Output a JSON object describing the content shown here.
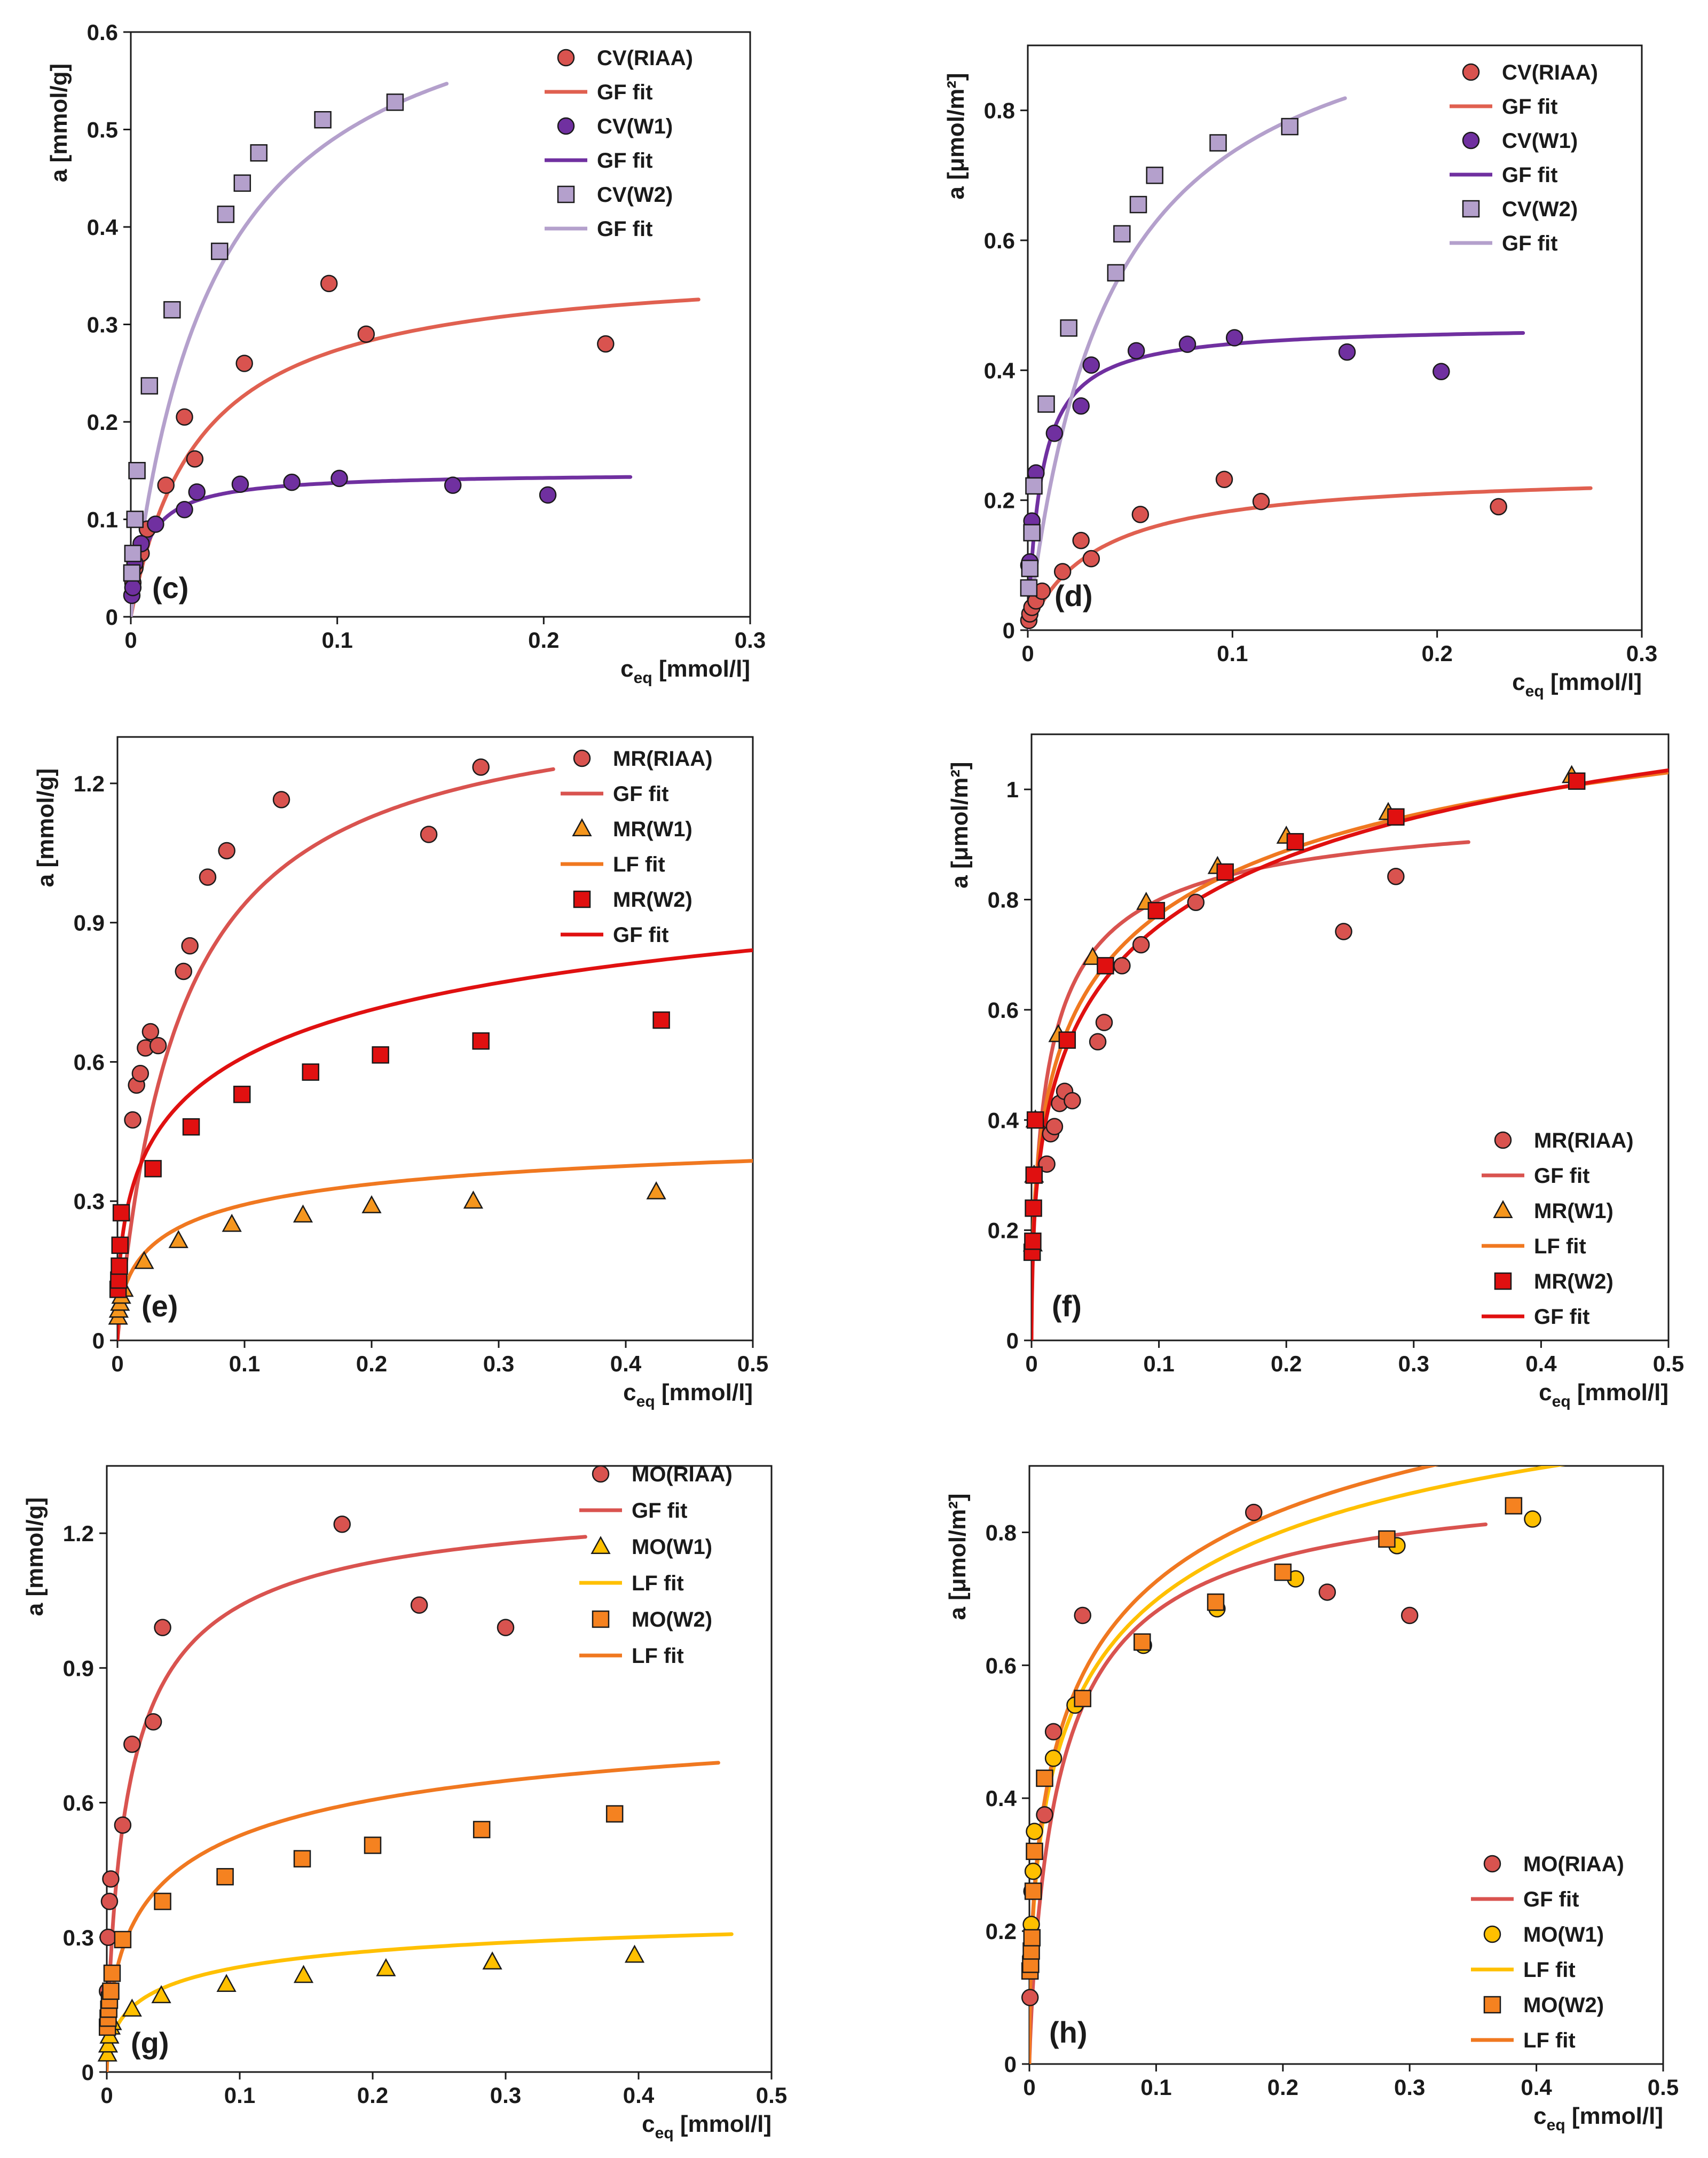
{
  "figure": {
    "description_labels": [
      "(c)",
      "(d)",
      "(e)",
      "(f)",
      "(g)",
      "(h)"
    ]
  },
  "chart_data": [
    {
      "id": "c",
      "type": "scatter",
      "panel_label": "(c)",
      "xlabel": "c",
      "xlabel_sub": "eq",
      "xlabel_unit": " [mmol/l]",
      "ylabel": "a [mmol/g]",
      "xlim": [
        0,
        0.3
      ],
      "ylim": [
        0,
        0.6
      ],
      "xticks": [
        0,
        0.1,
        0.2,
        0.3
      ],
      "xtick_labels": [
        "0",
        "0.1",
        "0.2",
        "0.3"
      ],
      "yticks": [
        0,
        0.1,
        0.2,
        0.3,
        0.4,
        0.5,
        0.6
      ],
      "ytick_labels": [
        "0",
        "0.1",
        "0.2",
        "0.3",
        "0.4",
        "0.5",
        "0.6"
      ],
      "legend_position": "top-right",
      "series": [
        {
          "name": "CV(RIAA)",
          "marker": "circle",
          "color": "#d9534f",
          "x": [
            0.001,
            0.002,
            0.005,
            0.008,
            0.017,
            0.026,
            0.031,
            0.055,
            0.096,
            0.114,
            0.23
          ],
          "y": [
            0.035,
            0.05,
            0.065,
            0.09,
            0.135,
            0.205,
            0.162,
            0.26,
            0.342,
            0.29,
            0.28
          ]
        },
        {
          "name": "GF fit",
          "line": true,
          "color": "#e06050",
          "curve": {
            "qm": 0.365,
            "K": 30
          },
          "xmax": 0.275
        },
        {
          "name": "CV(W1)",
          "marker": "circle",
          "color": "#7030a0",
          "x": [
            0.0005,
            0.001,
            0.002,
            0.005,
            0.012,
            0.026,
            0.032,
            0.053,
            0.078,
            0.101,
            0.156,
            0.202
          ],
          "y": [
            0.022,
            0.03,
            0.055,
            0.075,
            0.095,
            0.11,
            0.128,
            0.136,
            0.138,
            0.142,
            0.135,
            0.125
          ]
        },
        {
          "name": "GF fit",
          "line": true,
          "color": "#7030a0",
          "curve": {
            "qm": 0.148,
            "K": 130
          },
          "xmax": 0.242
        },
        {
          "name": "CV(W2)",
          "marker": "square",
          "color": "#b4a0cc",
          "x": [
            0.0005,
            0.001,
            0.002,
            0.003,
            0.009,
            0.02,
            0.043,
            0.046,
            0.054,
            0.062,
            0.093,
            0.128
          ],
          "y": [
            0.045,
            0.065,
            0.1,
            0.15,
            0.237,
            0.315,
            0.375,
            0.413,
            0.445,
            0.476,
            0.51,
            0.528
          ]
        },
        {
          "name": "GF fit",
          "line": true,
          "color": "#b4a0cc",
          "curve": {
            "qm": 0.69,
            "K": 25
          },
          "xmax": 0.153
        }
      ]
    },
    {
      "id": "d",
      "type": "scatter",
      "panel_label": "(d)",
      "xlabel": "c",
      "xlabel_sub": "eq",
      "xlabel_unit": " [mmol/l]",
      "ylabel": "a [μmol/m²]",
      "xlim": [
        0,
        0.3
      ],
      "ylim": [
        0,
        0.9
      ],
      "xticks": [
        0,
        0.1,
        0.2,
        0.3
      ],
      "xtick_labels": [
        "0",
        "0.1",
        "0.2",
        "0.3"
      ],
      "yticks": [
        0,
        0.2,
        0.4,
        0.6,
        0.8
      ],
      "ytick_labels": [
        "0",
        "0.2",
        "0.4",
        "0.6",
        "0.8"
      ],
      "legend_position": "top-right",
      "series": [
        {
          "name": "CV(RIAA)",
          "marker": "circle",
          "color": "#d9534f",
          "x": [
            0.0005,
            0.001,
            0.002,
            0.004,
            0.007,
            0.017,
            0.026,
            0.031,
            0.055,
            0.096,
            0.114,
            0.23
          ],
          "y": [
            0.015,
            0.025,
            0.035,
            0.045,
            0.06,
            0.09,
            0.138,
            0.11,
            0.178,
            0.232,
            0.198,
            0.19
          ]
        },
        {
          "name": "GF fit",
          "line": true,
          "color": "#e06050",
          "curve": {
            "qm": 0.245,
            "K": 30
          },
          "xmax": 0.275
        },
        {
          "name": "CV(W1)",
          "marker": "circle",
          "color": "#7030a0",
          "x": [
            0.0005,
            0.001,
            0.002,
            0.004,
            0.013,
            0.026,
            0.031,
            0.053,
            0.078,
            0.101,
            0.156,
            0.202
          ],
          "y": [
            0.1,
            0.105,
            0.168,
            0.242,
            0.303,
            0.345,
            0.408,
            0.43,
            0.44,
            0.45,
            0.428,
            0.398
          ]
        },
        {
          "name": "GF fit",
          "line": true,
          "color": "#7030a0",
          "curve": {
            "qm": 0.47,
            "K": 150
          },
          "xmax": 0.242
        },
        {
          "name": "CV(W2)",
          "marker": "square",
          "color": "#b4a0cc",
          "x": [
            0.0005,
            0.001,
            0.002,
            0.003,
            0.009,
            0.02,
            0.043,
            0.046,
            0.054,
            0.062,
            0.093,
            0.128
          ],
          "y": [
            0.065,
            0.095,
            0.15,
            0.222,
            0.348,
            0.465,
            0.55,
            0.61,
            0.655,
            0.7,
            0.75,
            0.775
          ]
        },
        {
          "name": "GF fit",
          "line": true,
          "color": "#b4a0cc",
          "curve": {
            "qm": 1.03,
            "K": 25
          },
          "xmax": 0.155
        }
      ]
    },
    {
      "id": "e",
      "type": "scatter",
      "panel_label": "(e)",
      "xlabel": "c",
      "xlabel_sub": "eq",
      "xlabel_unit": " [mmol/l]",
      "ylabel": "a [mmol/g]",
      "xlim": [
        0,
        0.5
      ],
      "ylim": [
        0,
        1.3
      ],
      "xticks": [
        0,
        0.1,
        0.2,
        0.3,
        0.4,
        0.5
      ],
      "xtick_labels": [
        "0",
        "0.1",
        "0.2",
        "0.3",
        "0.4",
        "0.5"
      ],
      "yticks": [
        0,
        0.3,
        0.6,
        0.9,
        1.2
      ],
      "ytick_labels": [
        "0",
        "0.3",
        "0.6",
        "0.9",
        "1.2"
      ],
      "legend_position": "top-right",
      "series": [
        {
          "name": "MR(RIAA)",
          "marker": "circle",
          "color": "#d9534f",
          "x": [
            0.012,
            0.015,
            0.018,
            0.022,
            0.026,
            0.032,
            0.052,
            0.057,
            0.071,
            0.086,
            0.129,
            0.245,
            0.286
          ],
          "y": [
            0.475,
            0.55,
            0.575,
            0.63,
            0.665,
            0.635,
            0.795,
            0.85,
            0.998,
            1.055,
            1.165,
            1.09,
            1.235
          ]
        },
        {
          "name": "GF fit",
          "line": true,
          "color": "#d9534f",
          "curve": {
            "qm": 1.41,
            "K": 20
          },
          "xmax": 0.343
        },
        {
          "name": "MR(W1)",
          "marker": "triangle",
          "color": "#f5961e",
          "x": [
            0.0005,
            0.001,
            0.002,
            0.003,
            0.005,
            0.021,
            0.048,
            0.09,
            0.146,
            0.2,
            0.28,
            0.424
          ],
          "y": [
            0.05,
            0.065,
            0.08,
            0.095,
            0.11,
            0.17,
            0.215,
            0.25,
            0.27,
            0.29,
            0.3,
            0.32
          ]
        },
        {
          "name": "LF fit",
          "line": true,
          "color": "#f07820",
          "curve": {
            "qm": 0.5,
            "K": 5,
            "n": 0.55
          },
          "xmax": 0.5
        },
        {
          "name": "MR(W2)",
          "marker": "square",
          "color": "#e01010",
          "x": [
            0.0005,
            0.001,
            0.0015,
            0.002,
            0.003,
            0.028,
            0.058,
            0.098,
            0.152,
            0.207,
            0.286,
            0.428
          ],
          "y": [
            0.11,
            0.13,
            0.16,
            0.205,
            0.275,
            0.37,
            0.46,
            0.53,
            0.578,
            0.615,
            0.645,
            0.69
          ]
        },
        {
          "name": "GF fit",
          "line": true,
          "color": "#e01010",
          "curve": {
            "qm": 1.3,
            "K": 2.5,
            "n": 0.45
          },
          "xmax": 0.5
        }
      ]
    },
    {
      "id": "f",
      "type": "scatter",
      "panel_label": "(f)",
      "xlabel": "c",
      "xlabel_sub": "eq",
      "xlabel_unit": " [mmol/l]",
      "ylabel": "a [μmol/m²]",
      "xlim": [
        0,
        0.5
      ],
      "ylim": [
        0,
        1.1
      ],
      "xticks": [
        0,
        0.1,
        0.2,
        0.3,
        0.4,
        0.5
      ],
      "xtick_labels": [
        "0",
        "0.1",
        "0.2",
        "0.3",
        "0.4",
        "0.5"
      ],
      "yticks": [
        0,
        0.2,
        0.4,
        0.6,
        0.8,
        1.0
      ],
      "ytick_labels": [
        "0",
        "0.2",
        "0.4",
        "0.6",
        "0.8",
        "1"
      ],
      "legend_position": "bottom-right",
      "series": [
        {
          "name": "MR(RIAA)",
          "marker": "circle",
          "color": "#d9534f",
          "x": [
            0.012,
            0.015,
            0.018,
            0.022,
            0.026,
            0.032,
            0.052,
            0.057,
            0.071,
            0.086,
            0.129,
            0.245,
            0.286
          ],
          "y": [
            0.32,
            0.375,
            0.388,
            0.43,
            0.452,
            0.435,
            0.542,
            0.577,
            0.68,
            0.718,
            0.795,
            0.742,
            0.842
          ]
        },
        {
          "name": "GF fit",
          "line": true,
          "color": "#d9534f",
          "curve": {
            "qm": 1.0,
            "K": 20,
            "n": 0.7
          },
          "xmax": 0.343
        },
        {
          "name": "MR(W1)",
          "marker": "triangle",
          "color": "#f5961e",
          "x": [
            0.001,
            0.002,
            0.003,
            0.021,
            0.048,
            0.09,
            0.146,
            0.2,
            0.28,
            0.424
          ],
          "y": [
            0.175,
            0.3,
            0.4,
            0.555,
            0.695,
            0.795,
            0.86,
            0.915,
            0.958,
            1.025
          ]
        },
        {
          "name": "LF fit",
          "line": true,
          "color": "#f07820",
          "curve": {
            "qm": 1.5,
            "K": 3,
            "n": 0.45
          },
          "xmax": 0.5
        },
        {
          "name": "MR(W2)",
          "marker": "square",
          "color": "#e01010",
          "x": [
            0.0005,
            0.001,
            0.0015,
            0.002,
            0.003,
            0.028,
            0.058,
            0.098,
            0.152,
            0.207,
            0.286,
            0.428
          ],
          "y": [
            0.16,
            0.18,
            0.24,
            0.3,
            0.4,
            0.545,
            0.68,
            0.78,
            0.85,
            0.905,
            0.95,
            1.015
          ]
        },
        {
          "name": "GF fit",
          "line": true,
          "color": "#e01010",
          "curve": {
            "qm": 1.6,
            "K": 2.5,
            "n": 0.45
          },
          "xmax": 0.5
        }
      ]
    },
    {
      "id": "g",
      "type": "scatter",
      "panel_label": "(g)",
      "xlabel": "c",
      "xlabel_sub": "eq",
      "xlabel_unit": " [mmol/l]",
      "ylabel": "a [mmol/g]",
      "xlim": [
        0,
        0.5
      ],
      "ylim": [
        0,
        1.35
      ],
      "xticks": [
        0,
        0.1,
        0.2,
        0.3,
        0.4,
        0.5
      ],
      "xtick_labels": [
        "0",
        "0.1",
        "0.2",
        "0.3",
        "0.4",
        "0.5"
      ],
      "yticks": [
        0,
        0.3,
        0.6,
        0.9,
        1.2
      ],
      "ytick_labels": [
        "0",
        "0.3",
        "0.6",
        "0.9",
        "1.2"
      ],
      "legend_position": "top-right",
      "series": [
        {
          "name": "MO(RIAA)",
          "marker": "circle",
          "color": "#d9534f",
          "x": [
            0.0005,
            0.001,
            0.002,
            0.003,
            0.012,
            0.019,
            0.035,
            0.042,
            0.177,
            0.235,
            0.3
          ],
          "y": [
            0.18,
            0.3,
            0.38,
            0.43,
            0.55,
            0.73,
            0.78,
            0.99,
            1.22,
            1.04,
            0.99
          ]
        },
        {
          "name": "GF fit",
          "line": true,
          "color": "#d9534f",
          "curve": {
            "qm": 1.3,
            "K": 25,
            "n": 0.8
          },
          "xmax": 0.36
        },
        {
          "name": "MO(W1)",
          "marker": "triangle",
          "color": "#ffc000",
          "x": [
            0.0005,
            0.001,
            0.002,
            0.003,
            0.004,
            0.019,
            0.041,
            0.09,
            0.148,
            0.21,
            0.29,
            0.397
          ],
          "y": [
            0.04,
            0.06,
            0.08,
            0.1,
            0.11,
            0.14,
            0.17,
            0.195,
            0.215,
            0.23,
            0.245,
            0.26
          ]
        },
        {
          "name": "LF fit",
          "line": true,
          "color": "#ffc000",
          "curve": {
            "qm": 0.4,
            "K": 5,
            "n": 0.55
          },
          "xmax": 0.47
        },
        {
          "name": "MO(W2)",
          "marker": "square",
          "color": "#f58220",
          "x": [
            0.0005,
            0.001,
            0.0015,
            0.002,
            0.003,
            0.004,
            0.012,
            0.042,
            0.089,
            0.147,
            0.2,
            0.282,
            0.382
          ],
          "y": [
            0.1,
            0.12,
            0.14,
            0.16,
            0.18,
            0.22,
            0.295,
            0.38,
            0.435,
            0.475,
            0.505,
            0.54,
            0.575
          ]
        },
        {
          "name": "LF fit",
          "line": true,
          "color": "#f07820",
          "curve": {
            "qm": 0.9,
            "K": 5,
            "n": 0.55
          },
          "xmax": 0.46
        }
      ]
    },
    {
      "id": "h",
      "type": "scatter",
      "panel_label": "(h)",
      "xlabel": "c",
      "xlabel_sub": "eq",
      "xlabel_unit": " [mmol/l]",
      "ylabel": "a [μmol/m²]",
      "xlim": [
        0,
        0.5
      ],
      "ylim": [
        0,
        0.9
      ],
      "xticks": [
        0,
        0.1,
        0.2,
        0.3,
        0.4,
        0.5
      ],
      "xtick_labels": [
        "0",
        "0.1",
        "0.2",
        "0.3",
        "0.4",
        "0.5"
      ],
      "yticks": [
        0,
        0.2,
        0.4,
        0.6,
        0.8
      ],
      "ytick_labels": [
        "0",
        "0.2",
        "0.4",
        "0.6",
        "0.8"
      ],
      "legend_position": "bottom-right",
      "series": [
        {
          "name": "MO(RIAA)",
          "marker": "circle",
          "color": "#d9534f",
          "x": [
            0.0005,
            0.012,
            0.019,
            0.042,
            0.177,
            0.235,
            0.3
          ],
          "y": [
            0.1,
            0.375,
            0.5,
            0.675,
            0.83,
            0.71,
            0.675
          ]
        },
        {
          "name": "GF fit",
          "line": true,
          "color": "#d9534f",
          "curve": {
            "qm": 0.9,
            "K": 22,
            "n": 0.85
          },
          "xmax": 0.36
        },
        {
          "name": "MO(W1)",
          "marker": "circle",
          "color": "#ffc000",
          "x": [
            0.001,
            0.0015,
            0.002,
            0.003,
            0.004,
            0.019,
            0.036,
            0.09,
            0.148,
            0.21,
            0.29,
            0.397
          ],
          "y": [
            0.16,
            0.21,
            0.26,
            0.29,
            0.35,
            0.46,
            0.54,
            0.63,
            0.685,
            0.73,
            0.78,
            0.82
          ]
        },
        {
          "name": "LF fit",
          "line": true,
          "color": "#ffc000",
          "curve": {
            "qm": 1.25,
            "K": 4,
            "n": 0.5
          },
          "xmax": 0.47
        },
        {
          "name": "MO(W2)",
          "marker": "square",
          "color": "#f58220",
          "x": [
            0.0005,
            0.001,
            0.0015,
            0.002,
            0.003,
            0.004,
            0.012,
            0.042,
            0.089,
            0.147,
            0.2,
            0.282,
            0.382
          ],
          "y": [
            0.14,
            0.15,
            0.17,
            0.19,
            0.26,
            0.32,
            0.43,
            0.55,
            0.635,
            0.695,
            0.74,
            0.79,
            0.84
          ]
        },
        {
          "name": "LF fit",
          "line": true,
          "color": "#f07820",
          "curve": {
            "qm": 1.3,
            "K": 4,
            "n": 0.5
          },
          "xmax": 0.455
        }
      ]
    }
  ]
}
